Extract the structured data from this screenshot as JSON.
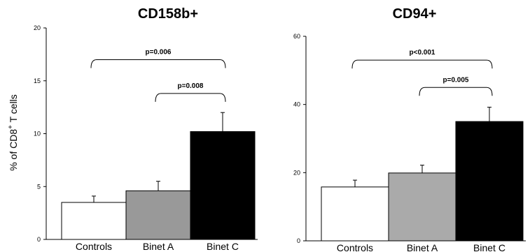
{
  "chart_data": [
    {
      "type": "bar",
      "title": "CD158b+",
      "ylabel_main": "% of CD8",
      "ylabel_sup": "+",
      "ylabel_tail": " T cells",
      "categories": [
        "Controls",
        "Binet A",
        "Binet C"
      ],
      "values": [
        3.5,
        4.6,
        10.2
      ],
      "errors": [
        0.6,
        0.9,
        1.8
      ],
      "bar_colors": [
        "#ffffff",
        "#999999",
        "#000000"
      ],
      "ylim": [
        0,
        20
      ],
      "yticks": [
        "0",
        "5",
        "10",
        "15",
        "20"
      ],
      "comparisons": [
        {
          "from": 0,
          "to": 2,
          "label": "p=0.006",
          "level": 17.0
        },
        {
          "from": 1,
          "to": 2,
          "label": "p=0.008",
          "level": 13.8
        }
      ]
    },
    {
      "type": "bar",
      "title": "CD94+",
      "categories": [
        "Controls",
        "Binet A",
        "Binet C"
      ],
      "values": [
        15.8,
        19.9,
        35.0
      ],
      "errors": [
        2.0,
        2.3,
        4.2
      ],
      "bar_colors": [
        "#ffffff",
        "#aaaaaa",
        "#000000"
      ],
      "ylim": [
        0,
        60
      ],
      "yticks": [
        "0",
        "20",
        "40",
        "60"
      ],
      "comparisons": [
        {
          "from": 0,
          "to": 2,
          "label": "p<0.001",
          "level": 53.0
        },
        {
          "from": 1,
          "to": 2,
          "label": "p=0.005",
          "level": 45.0
        }
      ]
    }
  ]
}
